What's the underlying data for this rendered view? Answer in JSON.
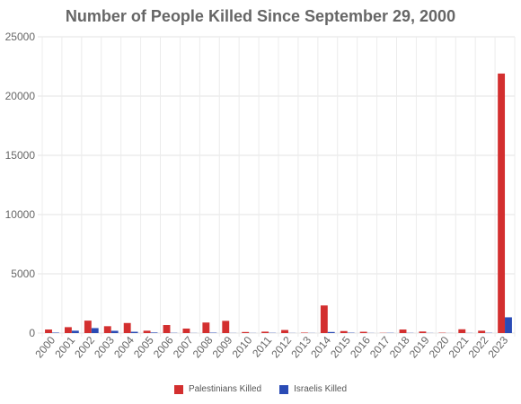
{
  "chart_data": {
    "type": "bar",
    "title": "Number of People Killed Since September 29, 2000",
    "xlabel": "",
    "ylabel": "",
    "ylim": [
      0,
      25000
    ],
    "yticks": [
      0,
      5000,
      10000,
      15000,
      20000,
      25000
    ],
    "grid": true,
    "legend_position": "bottom",
    "categories": [
      "2000",
      "2001",
      "2002",
      "2003",
      "2004",
      "2005",
      "2006",
      "2007",
      "2008",
      "2009",
      "2010",
      "2011",
      "2012",
      "2013",
      "2014",
      "2015",
      "2016",
      "2017",
      "2018",
      "2019",
      "2020",
      "2021",
      "2022",
      "2023"
    ],
    "series": [
      {
        "name": "Palestinians Killed",
        "color": "#d32f2f",
        "values": [
          300,
          500,
          1050,
          580,
          850,
          200,
          680,
          380,
          890,
          1030,
          90,
          120,
          260,
          40,
          2330,
          170,
          110,
          20,
          300,
          130,
          30,
          320,
          200,
          21900
        ]
      },
      {
        "name": "Israelis Killed",
        "color": "#2a4bb5",
        "values": [
          40,
          200,
          420,
          190,
          110,
          50,
          20,
          10,
          35,
          10,
          10,
          20,
          10,
          10,
          90,
          30,
          10,
          20,
          15,
          10,
          5,
          10,
          20,
          1330
        ]
      }
    ]
  }
}
